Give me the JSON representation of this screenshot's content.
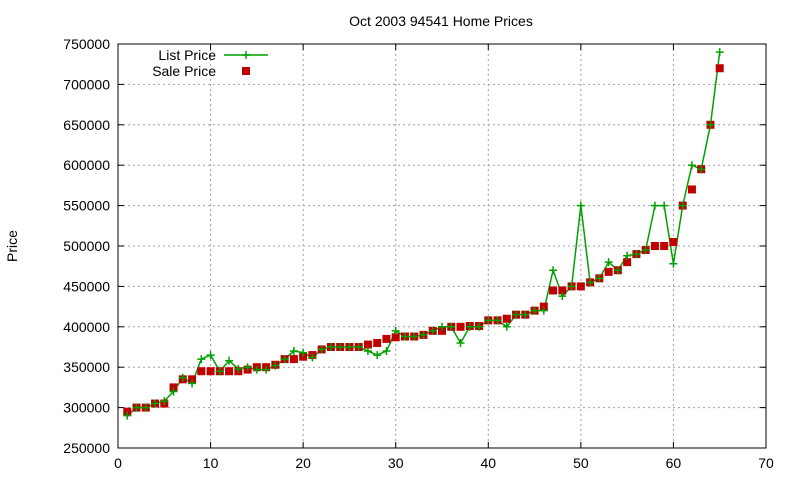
{
  "chart_data": {
    "type": "line",
    "title": "Oct 2003 94541 Home Prices",
    "xlabel": "",
    "ylabel": "Price",
    "xlim": [
      0,
      70
    ],
    "ylim": [
      250000,
      750000
    ],
    "x_ticks": [
      "0",
      "10",
      "20",
      "30",
      "40",
      "50",
      "60",
      "70"
    ],
    "y_ticks": [
      "250000",
      "300000",
      "350000",
      "400000",
      "450000",
      "500000",
      "550000",
      "600000",
      "650000",
      "700000",
      "750000"
    ],
    "grid": true,
    "legend_position": "top-left",
    "x": [
      1,
      2,
      3,
      4,
      5,
      6,
      7,
      8,
      9,
      10,
      11,
      12,
      13,
      14,
      15,
      16,
      17,
      18,
      19,
      20,
      21,
      22,
      23,
      24,
      25,
      26,
      27,
      28,
      29,
      30,
      31,
      32,
      33,
      34,
      35,
      36,
      37,
      38,
      39,
      40,
      41,
      42,
      43,
      44,
      45,
      46,
      47,
      48,
      49,
      50,
      51,
      52,
      53,
      54,
      55,
      56,
      57,
      58,
      59,
      60,
      61,
      62,
      63,
      64,
      65
    ],
    "series": [
      {
        "name": "List Price",
        "style": "line-points",
        "color": "#00a000",
        "values": [
          290000,
          300000,
          300000,
          305000,
          308000,
          320000,
          337000,
          330000,
          360000,
          365000,
          345000,
          358000,
          348000,
          350000,
          347000,
          347000,
          352000,
          360000,
          370000,
          368000,
          362000,
          372000,
          375000,
          375000,
          375000,
          375000,
          370000,
          365000,
          370000,
          395000,
          388000,
          388000,
          390000,
          395000,
          400000,
          400000,
          380000,
          400000,
          400000,
          408000,
          408000,
          400000,
          415000,
          415000,
          420000,
          420000,
          470000,
          438000,
          450000,
          550000,
          455000,
          460000,
          480000,
          470000,
          488000,
          490000,
          495000,
          550000,
          550000,
          478000,
          550000,
          600000,
          595000,
          650000,
          740000
        ]
      },
      {
        "name": "Sale Price",
        "style": "points",
        "color": "#c00000",
        "values": [
          295000,
          300000,
          300000,
          305000,
          305000,
          325000,
          335000,
          335000,
          345000,
          345000,
          345000,
          345000,
          345000,
          347000,
          350000,
          350000,
          353000,
          360000,
          360000,
          363000,
          365000,
          372000,
          375000,
          375000,
          375000,
          375000,
          378000,
          380000,
          385000,
          387000,
          388000,
          388000,
          390000,
          395000,
          395000,
          400000,
          400000,
          401000,
          401000,
          408000,
          408000,
          410000,
          415000,
          415000,
          420000,
          425000,
          445000,
          445000,
          450000,
          450000,
          455000,
          460000,
          468000,
          470000,
          480000,
          490000,
          495000,
          500000,
          500000,
          505000,
          550000,
          570000,
          595000,
          650000,
          720000
        ]
      }
    ]
  }
}
